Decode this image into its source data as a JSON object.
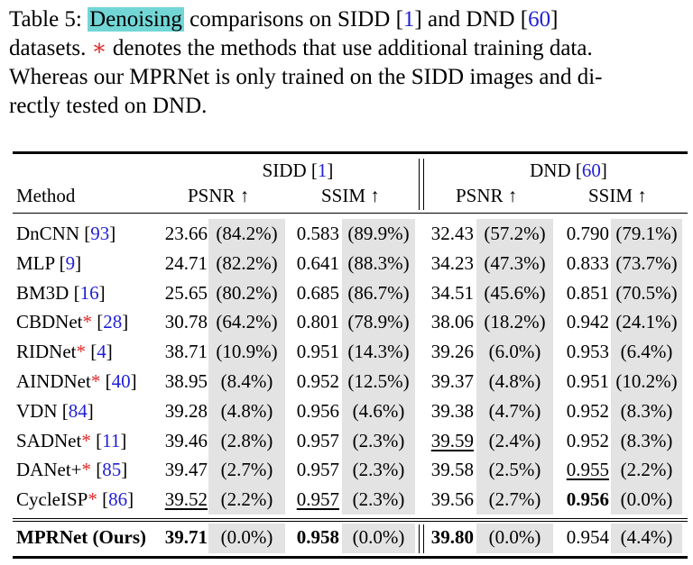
{
  "caption": {
    "table_label": "Table 5:",
    "highlight_word": "Denoising",
    "text_a": " comparisons on SIDD [",
    "ref_sidd": "1",
    "text_b": "] and DND [",
    "ref_dnd": "60",
    "text_c": "]",
    "line2_a": "datasets. ",
    "star": "∗",
    "line2_b": " denotes the methods that use additional training data.",
    "line3": "Whereas our MPRNet is only trained on the SIDD images and di-",
    "line4": "rectly tested on DND."
  },
  "header": {
    "sidd_group": "SIDD [",
    "sidd_ref": "1",
    "dnd_group": "DND [",
    "dnd_ref": "60",
    "close": "]",
    "method": "Method",
    "psnr": "PSNR ↑",
    "ssim": "SSIM ↑"
  },
  "rows": [
    {
      "name": "DnCNN [",
      "star": "",
      "ref": "93",
      "sp": "23.66",
      "spp": "(84.2%)",
      "ss": "0.583",
      "ssp": "(89.9%)",
      "dp": "32.43",
      "dpp": "(57.2%)",
      "ds": "0.790",
      "dsp": "(79.1%)"
    },
    {
      "name": "MLP [",
      "star": "",
      "ref": "9",
      "sp": "24.71",
      "spp": "(82.2%)",
      "ss": "0.641",
      "ssp": "(88.3%)",
      "dp": "34.23",
      "dpp": "(47.3%)",
      "ds": "0.833",
      "dsp": "(73.7%)"
    },
    {
      "name": "BM3D [",
      "star": "",
      "ref": "16",
      "sp": "25.65",
      "spp": "(80.2%)",
      "ss": "0.685",
      "ssp": "(86.7%)",
      "dp": "34.51",
      "dpp": "(45.6%)",
      "ds": "0.851",
      "dsp": "(70.5%)"
    },
    {
      "name": "CBDNet",
      "star": "*",
      "ref": "28",
      "sp": "30.78",
      "spp": "(64.2%)",
      "ss": "0.801",
      "ssp": "(78.9%)",
      "dp": "38.06",
      "dpp": "(18.2%)",
      "ds": "0.942",
      "dsp": "(24.1%)"
    },
    {
      "name": "RIDNet",
      "star": "*",
      "ref": "4",
      "sp": "38.71",
      "spp": "(10.9%)",
      "ss": "0.951",
      "ssp": "(14.3%)",
      "dp": "39.26",
      "dpp": "(6.0%)",
      "ds": "0.953",
      "dsp": "(6.4%)"
    },
    {
      "name": "AINDNet",
      "star": "*",
      "ref": "40",
      "sp": "38.95",
      "spp": "(8.4%)",
      "ss": "0.952",
      "ssp": "(12.5%)",
      "dp": "39.37",
      "dpp": "(4.8%)",
      "ds": "0.951",
      "dsp": "(10.2%)"
    },
    {
      "name": "VDN [",
      "star": "",
      "ref": "84",
      "sp": "39.28",
      "spp": "(4.8%)",
      "ss": "0.956",
      "ssp": "(4.6%)",
      "dp": "39.38",
      "dpp": "(4.7%)",
      "ds": "0.952",
      "dsp": "(8.3%)"
    },
    {
      "name": "SADNet",
      "star": "*",
      "ref": "11",
      "sp": "39.46",
      "spp": "(2.8%)",
      "ss": "0.957",
      "ssp": "(2.3%)",
      "dp": "39.59",
      "dpp": "(2.4%)",
      "ds": "0.952",
      "dsp": "(8.3%)"
    },
    {
      "name": "DANet+",
      "star": "*",
      "ref": "85",
      "sp": "39.47",
      "spp": "(2.7%)",
      "ss": "0.957",
      "ssp": "(2.3%)",
      "dp": "39.58",
      "dpp": "(2.5%)",
      "ds": "0.955",
      "dsp": "(2.2%)"
    },
    {
      "name": "CycleISP",
      "star": "*",
      "ref": "86",
      "sp": "39.52",
      "spp": "(2.2%)",
      "ss": "0.957",
      "ssp": "(2.3%)",
      "dp": "39.56",
      "dpp": "(2.7%)",
      "ds": "0.956",
      "dsp": "(0.0%)"
    }
  ],
  "ours": {
    "name": "MPRNet (Ours)",
    "sp": "39.71",
    "spp": "(0.0%)",
    "ss": "0.958",
    "ssp": "(0.0%)",
    "dp": "39.80",
    "dpp": "(0.0%)",
    "ds": "0.954",
    "dsp": "(4.4%)"
  },
  "style": {
    "highlight_color": "#72d6d6",
    "ref_color": "#1f1fd6",
    "star_color": "#e02828",
    "shade_color": "#e3e3e3"
  }
}
